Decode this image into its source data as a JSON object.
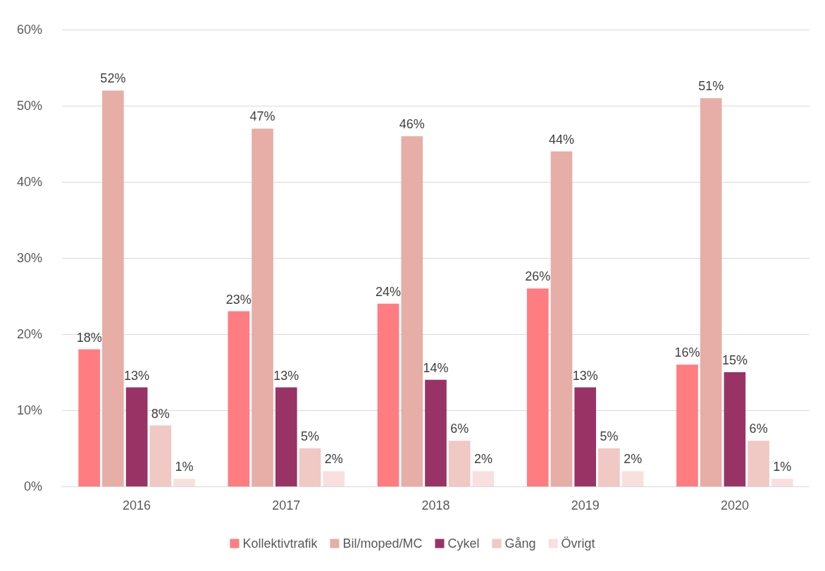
{
  "chart_data": {
    "type": "bar",
    "categories": [
      "2016",
      "2017",
      "2018",
      "2019",
      "2020"
    ],
    "series": [
      {
        "name": "Kollektivtrafik",
        "color": "#ff7c80",
        "values": [
          18,
          23,
          24,
          26,
          16
        ],
        "value_labels": [
          "18%",
          "23%",
          "24%",
          "26%",
          "16%"
        ]
      },
      {
        "name": "Bil/moped/MC",
        "color": "#e6aea6",
        "values": [
          52,
          47,
          46,
          44,
          51
        ],
        "value_labels": [
          "52%",
          "47%",
          "46%",
          "44%",
          "51%"
        ]
      },
      {
        "name": "Cykel",
        "color": "#993366",
        "values": [
          13,
          13,
          14,
          13,
          15
        ],
        "value_labels": [
          "13%",
          "13%",
          "14%",
          "13%",
          "15%"
        ]
      },
      {
        "name": "Gång",
        "color": "#f0c8c4",
        "values": [
          8,
          5,
          6,
          5,
          6
        ],
        "value_labels": [
          "8%",
          "5%",
          "6%",
          "5%",
          "6%"
        ]
      },
      {
        "name": "Övrigt",
        "color": "#f8e0de",
        "values": [
          1,
          2,
          2,
          2,
          1
        ],
        "value_labels": [
          "1%",
          "2%",
          "2%",
          "2%",
          "1%"
        ]
      }
    ],
    "ylim": [
      0,
      60
    ],
    "yticks": [
      {
        "value": 0,
        "label": "0%"
      },
      {
        "value": 10,
        "label": "10%"
      },
      {
        "value": 20,
        "label": "20%"
      },
      {
        "value": 30,
        "label": "30%"
      },
      {
        "value": 40,
        "label": "40%"
      },
      {
        "value": 50,
        "label": "50%"
      },
      {
        "value": 60,
        "label": "60%"
      }
    ],
    "grid": "y",
    "legend": "bottom"
  }
}
